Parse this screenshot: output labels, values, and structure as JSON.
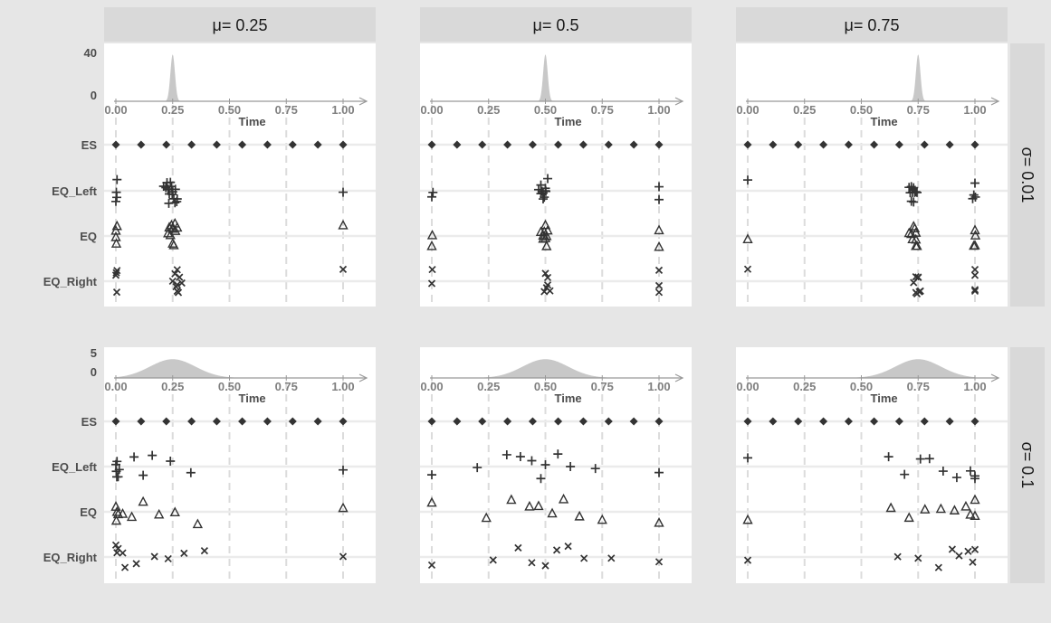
{
  "chart_data": {
    "type": "scatter",
    "description_free": true,
    "columns": [
      {
        "label": "μ= 0.25",
        "mu": 0.25
      },
      {
        "label": "μ= 0.5",
        "mu": 0.5
      },
      {
        "label": "μ= 0.75",
        "mu": 0.75
      }
    ],
    "rows": [
      {
        "label": "σ= 0.01",
        "sigma": 0.01,
        "density_ticks": [
          "40",
          "0"
        ],
        "density_max": 40
      },
      {
        "label": "σ= 0.1",
        "sigma": 0.1,
        "density_ticks": [
          "5",
          "0"
        ],
        "density_max": 5
      }
    ],
    "x_ticks": [
      "0.00",
      "0.25",
      "0.50",
      "0.75",
      "1.00"
    ],
    "xlabel": "Time",
    "xlim": [
      0,
      1
    ],
    "categories": [
      "ES",
      "EQ_Left",
      "EQ",
      "EQ_Right"
    ],
    "colors": {
      "density": "#c8c8c8",
      "points": "#333333",
      "strip": "#d9d9d9",
      "panel": "#ffffff",
      "grid": "#ebebeb",
      "dashed": "#dcdcdc",
      "axis": "#999999"
    },
    "panels": [
      {
        "row": 0,
        "col": 0,
        "ES": [
          0,
          0.111,
          0.222,
          0.333,
          0.444,
          0.556,
          0.667,
          0.778,
          0.889,
          1
        ],
        "EQ_Left": [
          0,
          0.005,
          0.002,
          0.22,
          0.23,
          0.235,
          0.24,
          0.245,
          0.25,
          0.26,
          0.27,
          0.225,
          0.233,
          0.255,
          0.262,
          0.268,
          0.23,
          0.248,
          0.21,
          0.004,
          1
        ],
        "EQ": [
          0,
          0.005,
          0.002,
          0,
          0.23,
          0.255,
          0.24,
          0.25,
          0.262,
          0.27,
          0.235,
          0.245,
          0.25,
          0.26,
          1
        ],
        "EQ_Right": [
          0,
          0.004,
          0.005,
          0.002,
          0.25,
          0.27,
          0.28,
          0.29,
          0.265,
          0.275,
          0.26,
          0.27,
          0.27,
          1
        ]
      },
      {
        "row": 0,
        "col": 1,
        "ES": [
          0,
          0.111,
          0.222,
          0.333,
          0.444,
          0.556,
          0.667,
          0.778,
          0.889,
          1
        ],
        "EQ_Left": [
          0,
          0.005,
          0.47,
          0.48,
          0.49,
          0.495,
          0.5,
          0.502,
          0.485,
          0.51,
          0.49,
          0.48,
          0.5,
          1,
          1
        ],
        "EQ": [
          0,
          0.002,
          0.48,
          0.49,
          0.5,
          0.505,
          0.51,
          0.495,
          0.49,
          0.5,
          0.505,
          1,
          1
        ],
        "EQ_Right": [
          0,
          0.002,
          0.51,
          0.52,
          0.5,
          0.495,
          0.51,
          0.505,
          1,
          1,
          1
        ],
        "offsets_note": ""
      },
      {
        "row": 0,
        "col": 2,
        "ES": [
          0,
          0.111,
          0.222,
          0.333,
          0.444,
          0.556,
          0.667,
          0.778,
          0.889,
          1
        ],
        "EQ_Left": [
          0,
          0.71,
          0.72,
          0.73,
          0.74,
          0.735,
          0.725,
          0.715,
          0.745,
          0.73,
          0.72,
          0.99,
          1,
          1.002,
          0.995
        ],
        "EQ": [
          0,
          0.71,
          0.72,
          0.73,
          0.74,
          0.74,
          0.745,
          0.725,
          0.735,
          0.74,
          0.995,
          1,
          1.002,
          1
        ],
        "EQ_Right": [
          0,
          0.74,
          0.75,
          0.76,
          0.745,
          0.755,
          0.73,
          0.74,
          0.75,
          1,
          1,
          1,
          1
        ]
      },
      {
        "row": 1,
        "col": 0,
        "ES": [
          0,
          0.111,
          0.222,
          0.333,
          0.444,
          0.556,
          0.667,
          0.778,
          0.889,
          1
        ],
        "EQ_Left": [
          0,
          0.005,
          0.01,
          0.015,
          0.004,
          0.002,
          0.08,
          0.12,
          0.16,
          0.24,
          0.33,
          1
        ],
        "EQ": [
          0,
          0.005,
          0.01,
          0.03,
          0.002,
          0.07,
          0.12,
          0.19,
          0.26,
          0.36,
          1
        ],
        "EQ_Right": [
          0,
          0.005,
          0.01,
          0.04,
          0.03,
          0.09,
          0.17,
          0.23,
          0.3,
          0.39,
          1
        ],
        "offsets_note": ""
      },
      {
        "row": 1,
        "col": 1,
        "ES": [
          0,
          0.111,
          0.222,
          0.333,
          0.444,
          0.556,
          0.667,
          0.778,
          0.889,
          1
        ],
        "EQ_Left": [
          0,
          0.2,
          0.33,
          0.39,
          0.44,
          0.48,
          0.5,
          0.555,
          0.61,
          0.72,
          1
        ],
        "EQ": [
          0,
          0.24,
          0.35,
          0.43,
          0.47,
          0.53,
          0.58,
          0.65,
          0.75,
          1
        ],
        "EQ_Right": [
          0,
          0.27,
          0.38,
          0.44,
          0.5,
          0.55,
          0.6,
          0.67,
          0.79,
          1
        ]
      },
      {
        "row": 1,
        "col": 2,
        "ES": [
          0,
          0.111,
          0.222,
          0.333,
          0.444,
          0.556,
          0.667,
          0.778,
          0.889,
          1
        ],
        "EQ_Left": [
          0,
          0.62,
          0.69,
          0.76,
          0.8,
          0.86,
          0.92,
          0.98,
          1,
          1
        ],
        "EQ": [
          0,
          0.63,
          0.71,
          0.78,
          0.85,
          0.91,
          0.96,
          0.98,
          1,
          1
        ],
        "EQ_Right": [
          0,
          0.66,
          0.75,
          0.84,
          0.9,
          0.93,
          0.97,
          0.99,
          1
        ]
      }
    ]
  }
}
